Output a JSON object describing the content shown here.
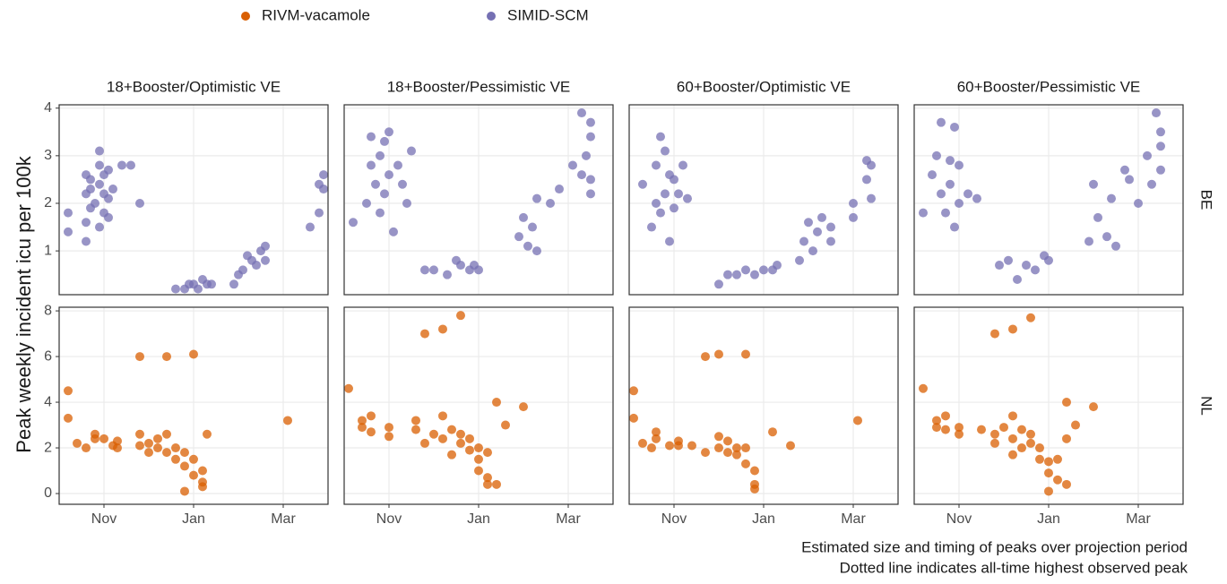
{
  "chart_data": {
    "type": "scatter",
    "ylabel": "Peak weekly incident icu per 100k",
    "caption": [
      "Estimated size and timing of peaks over projection period",
      "Dotted line indicates all-time highest observed peak"
    ],
    "columns": [
      "18+Booster/Optimistic VE",
      "18+Booster/Pessimistic VE",
      "60+Booster/Optimistic VE",
      "60+Booster/Pessimistic VE"
    ],
    "rows": [
      {
        "label": "BE",
        "ylim": [
          0.08,
          4.07
        ],
        "yticks": [
          1,
          2,
          3,
          4
        ]
      },
      {
        "label": "NL",
        "ylim": [
          -0.47,
          8.16
        ],
        "yticks": [
          0,
          2,
          4,
          6,
          8
        ]
      }
    ],
    "xlim": [
      10,
      16
    ],
    "xticks": [
      {
        "value": 11,
        "label": "Nov"
      },
      {
        "value": 13,
        "label": "Jan"
      },
      {
        "value": 15,
        "label": "Mar"
      }
    ],
    "grid": true,
    "legend_position": "top",
    "series": [
      {
        "name": "RIVM-vacamole",
        "color": "#d95f02",
        "row": "NL",
        "panels": [
          {
            "x": [
              10.2,
              10.2,
              10.4,
              10.6,
              10.8,
              10.8,
              11.0,
              11.2,
              11.3,
              11.3,
              11.8,
              11.8,
              11.8,
              12.0,
              12.0,
              12.2,
              12.2,
              12.4,
              12.4,
              12.4,
              12.6,
              12.6,
              12.8,
              12.8,
              12.8,
              13.0,
              13.0,
              13.0,
              13.2,
              13.2,
              13.2,
              13.3,
              15.1
            ],
            "y": [
              4.5,
              3.3,
              2.2,
              2.0,
              2.6,
              2.4,
              2.4,
              2.1,
              2.3,
              2.0,
              6.0,
              2.6,
              2.1,
              2.2,
              1.8,
              2.4,
              2.0,
              6.0,
              2.6,
              1.8,
              1.5,
              2.0,
              1.8,
              1.2,
              0.1,
              6.1,
              1.5,
              0.8,
              1.0,
              0.5,
              0.3,
              2.6,
              3.2
            ]
          },
          {
            "x": [
              10.1,
              10.4,
              10.4,
              10.6,
              10.6,
              11.0,
              11.0,
              11.6,
              11.6,
              11.8,
              11.8,
              12.0,
              12.2,
              12.2,
              12.2,
              12.4,
              12.4,
              12.6,
              12.6,
              12.6,
              12.8,
              12.8,
              13.0,
              13.0,
              13.0,
              13.2,
              13.2,
              13.2,
              13.4,
              13.4,
              13.6,
              14.0
            ],
            "y": [
              4.6,
              3.2,
              2.9,
              3.4,
              2.7,
              2.9,
              2.5,
              3.2,
              2.8,
              7.0,
              2.2,
              2.6,
              7.2,
              3.4,
              2.4,
              2.8,
              1.7,
              7.8,
              2.6,
              2.2,
              2.4,
              1.9,
              2.0,
              1.5,
              1.0,
              0.4,
              1.8,
              0.7,
              4.0,
              0.4,
              3.0,
              3.8
            ]
          },
          {
            "x": [
              10.1,
              10.1,
              10.3,
              10.5,
              10.6,
              10.6,
              10.9,
              11.1,
              11.1,
              11.4,
              11.7,
              11.7,
              12.0,
              12.0,
              12.0,
              12.2,
              12.2,
              12.4,
              12.4,
              12.6,
              12.6,
              12.6,
              12.8,
              12.8,
              12.8,
              13.2,
              13.6,
              15.1
            ],
            "y": [
              4.5,
              3.3,
              2.2,
              2.0,
              2.7,
              2.4,
              2.1,
              2.3,
              2.1,
              2.1,
              6.0,
              1.8,
              6.1,
              2.5,
              2.0,
              2.3,
              1.8,
              2.0,
              1.7,
              6.1,
              2.0,
              1.3,
              1.0,
              0.4,
              0.2,
              2.7,
              2.1,
              3.2
            ]
          },
          {
            "x": [
              10.2,
              10.5,
              10.5,
              10.7,
              10.7,
              11.0,
              11.0,
              11.5,
              11.8,
              11.8,
              11.8,
              12.0,
              12.2,
              12.2,
              12.2,
              12.2,
              12.4,
              12.4,
              12.6,
              12.6,
              12.6,
              12.8,
              12.8,
              13.0,
              13.0,
              13.0,
              13.2,
              13.2,
              13.4,
              13.4,
              13.4,
              13.6,
              14.0
            ],
            "y": [
              4.6,
              3.2,
              2.9,
              3.4,
              2.8,
              2.9,
              2.6,
              2.8,
              7.0,
              2.6,
              2.2,
              2.9,
              7.2,
              3.4,
              2.4,
              1.7,
              2.8,
              2.0,
              7.7,
              2.6,
              2.2,
              2.0,
              1.5,
              1.4,
              0.1,
              0.9,
              0.6,
              1.5,
              4.0,
              0.4,
              2.4,
              3.0,
              3.8
            ]
          }
        ]
      },
      {
        "name": "SIMID-SCM",
        "color": "#7570b3",
        "row": "BE",
        "panels": [
          {
            "x": [
              10.2,
              10.2,
              10.6,
              10.6,
              10.6,
              10.6,
              10.7,
              10.7,
              10.7,
              10.8,
              10.9,
              10.9,
              10.9,
              10.9,
              11.0,
              11.0,
              11.0,
              11.1,
              11.1,
              11.1,
              11.2,
              11.4,
              11.6,
              11.8,
              12.6,
              12.8,
              12.9,
              13.0,
              13.1,
              13.2,
              13.3,
              13.4,
              13.9,
              14.0,
              14.1,
              14.2,
              14.3,
              14.4,
              14.5,
              14.6,
              14.6,
              15.6,
              15.8,
              15.8,
              15.9,
              15.9
            ],
            "y": [
              1.4,
              1.8,
              1.2,
              1.6,
              2.2,
              2.6,
              1.9,
              2.3,
              2.5,
              2.0,
              1.5,
              2.4,
              3.1,
              2.8,
              1.8,
              2.2,
              2.6,
              1.7,
              2.1,
              2.7,
              2.3,
              2.8,
              2.8,
              2.0,
              0.2,
              0.2,
              0.3,
              0.3,
              0.2,
              0.4,
              0.3,
              0.3,
              0.3,
              0.5,
              0.6,
              0.9,
              0.8,
              0.7,
              1.0,
              0.8,
              1.1,
              1.5,
              1.8,
              2.4,
              2.6,
              2.3
            ]
          },
          {
            "x": [
              10.2,
              10.5,
              10.6,
              10.6,
              10.7,
              10.8,
              10.8,
              10.9,
              10.9,
              11.0,
              11.0,
              11.1,
              11.2,
              11.3,
              11.4,
              11.5,
              11.8,
              12.0,
              12.3,
              12.5,
              12.6,
              12.8,
              12.9,
              13.0,
              13.9,
              14.0,
              14.1,
              14.2,
              14.3,
              14.3,
              14.6,
              14.8,
              15.1,
              15.3,
              15.3,
              15.4,
              15.5,
              15.5,
              15.5,
              15.5
            ],
            "y": [
              1.6,
              2.0,
              2.8,
              3.4,
              2.4,
              1.8,
              3.0,
              2.2,
              3.3,
              2.6,
              3.5,
              1.4,
              2.8,
              2.4,
              2.0,
              3.1,
              0.6,
              0.6,
              0.5,
              0.8,
              0.7,
              0.6,
              0.7,
              0.6,
              1.3,
              1.7,
              1.1,
              1.5,
              2.1,
              1.0,
              2.0,
              2.3,
              2.8,
              2.6,
              3.9,
              3.0,
              2.2,
              3.4,
              3.7,
              2.5
            ]
          },
          {
            "x": [
              10.3,
              10.5,
              10.6,
              10.6,
              10.7,
              10.7,
              10.8,
              10.8,
              10.9,
              10.9,
              11.0,
              11.0,
              11.1,
              11.2,
              11.3,
              12.0,
              12.2,
              12.4,
              12.6,
              12.8,
              13.0,
              13.2,
              13.3,
              13.8,
              13.9,
              14.0,
              14.1,
              14.2,
              14.3,
              14.5,
              14.5,
              15.0,
              15.0,
              15.3,
              15.3,
              15.4,
              15.4
            ],
            "y": [
              2.4,
              1.5,
              2.0,
              2.8,
              1.8,
              3.4,
              2.2,
              3.1,
              1.2,
              2.6,
              1.9,
              2.5,
              2.2,
              2.8,
              2.1,
              0.3,
              0.5,
              0.5,
              0.6,
              0.5,
              0.6,
              0.6,
              0.7,
              0.8,
              1.2,
              1.6,
              1.0,
              1.4,
              1.7,
              1.2,
              1.5,
              1.7,
              2.0,
              2.5,
              2.9,
              2.1,
              2.8
            ]
          },
          {
            "x": [
              10.2,
              10.4,
              10.5,
              10.6,
              10.6,
              10.7,
              10.8,
              10.8,
              10.9,
              10.9,
              11.0,
              11.0,
              11.2,
              11.4,
              11.9,
              12.1,
              12.3,
              12.5,
              12.7,
              12.9,
              13.0,
              13.9,
              14.0,
              14.1,
              14.3,
              14.4,
              14.5,
              14.7,
              14.8,
              15.0,
              15.2,
              15.3,
              15.4,
              15.5,
              15.5,
              15.5
            ],
            "y": [
              1.8,
              2.6,
              3.0,
              2.2,
              3.7,
              1.8,
              2.9,
              2.4,
              1.5,
              3.6,
              2.0,
              2.8,
              2.2,
              2.1,
              0.7,
              0.8,
              0.4,
              0.7,
              0.6,
              0.9,
              0.8,
              1.2,
              2.4,
              1.7,
              1.3,
              2.1,
              1.1,
              2.7,
              2.5,
              2.0,
              3.0,
              2.4,
              3.9,
              3.2,
              3.5,
              2.7
            ]
          }
        ]
      }
    ]
  }
}
